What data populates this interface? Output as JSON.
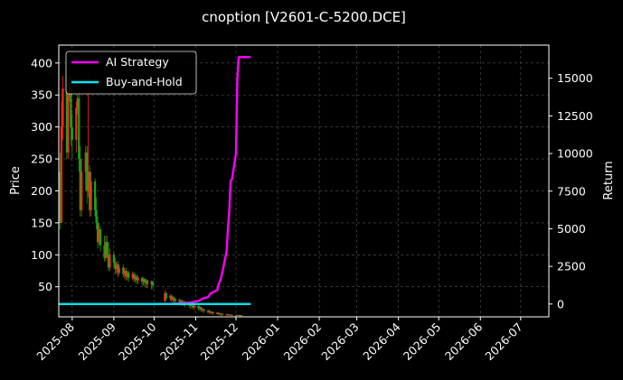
{
  "chart_data": {
    "type": "line",
    "title": "cnoption [V2601-C-5200.DCE]",
    "ylabel_left": "Price",
    "ylabel_right": "Return",
    "xlabel": "",
    "x_ticks": [
      "2025-08",
      "2025-09",
      "2025-10",
      "2025-11",
      "2025-12",
      "2026-01",
      "2026-02",
      "2026-03",
      "2026-04",
      "2026-05",
      "2026-06",
      "2026-07"
    ],
    "x_range": [
      "2025-07-22",
      "2026-07-22"
    ],
    "ylim_left": [
      3,
      428
    ],
    "ylim_right": [
      -850,
      17200
    ],
    "y_ticks_left": [
      50,
      100,
      150,
      200,
      250,
      300,
      350,
      400
    ],
    "y_ticks_right": [
      0,
      2500,
      5000,
      7500,
      10000,
      12500,
      15000
    ],
    "grid": true,
    "legend_position": "top-left",
    "legend": [
      {
        "label": "AI Strategy",
        "color": "#ff00ff"
      },
      {
        "label": "Buy-and-Hold",
        "color": "#00e5ee"
      }
    ],
    "candles": [
      [
        "2025-07-23",
        230,
        150,
        260,
        140
      ],
      [
        "2025-07-24",
        150,
        300,
        340,
        150
      ],
      [
        "2025-07-25",
        300,
        360,
        380,
        280
      ],
      [
        "2025-07-28",
        360,
        260,
        390,
        250
      ],
      [
        "2025-07-29",
        260,
        350,
        380,
        250
      ],
      [
        "2025-07-30",
        350,
        370,
        395,
        340
      ],
      [
        "2025-07-31",
        370,
        300,
        380,
        270
      ],
      [
        "2025-08-01",
        300,
        280,
        320,
        250
      ],
      [
        "2025-08-04",
        280,
        330,
        340,
        260
      ],
      [
        "2025-08-05",
        330,
        345,
        350,
        320
      ],
      [
        "2025-08-06",
        345,
        250,
        360,
        230
      ],
      [
        "2025-08-07",
        250,
        170,
        270,
        160
      ],
      [
        "2025-08-08",
        170,
        230,
        250,
        160
      ],
      [
        "2025-08-11",
        230,
        260,
        270,
        200
      ],
      [
        "2025-08-12",
        260,
        200,
        270,
        180
      ],
      [
        "2025-08-13",
        200,
        230,
        380,
        190
      ],
      [
        "2025-08-14",
        230,
        170,
        240,
        160
      ],
      [
        "2025-08-15",
        170,
        215,
        230,
        160
      ],
      [
        "2025-08-18",
        215,
        170,
        220,
        160
      ],
      [
        "2025-08-19",
        170,
        150,
        190,
        140
      ],
      [
        "2025-08-20",
        150,
        120,
        160,
        110
      ],
      [
        "2025-08-21",
        120,
        140,
        150,
        115
      ],
      [
        "2025-08-22",
        140,
        115,
        145,
        105
      ],
      [
        "2025-08-25",
        115,
        95,
        130,
        90
      ],
      [
        "2025-08-26",
        95,
        120,
        130,
        90
      ],
      [
        "2025-08-27",
        120,
        100,
        130,
        95
      ],
      [
        "2025-08-28",
        100,
        80,
        120,
        75
      ],
      [
        "2025-08-29",
        80,
        100,
        110,
        75
      ],
      [
        "2025-09-01",
        100,
        88,
        105,
        80
      ],
      [
        "2025-09-02",
        88,
        78,
        95,
        70
      ],
      [
        "2025-09-03",
        78,
        85,
        90,
        70
      ],
      [
        "2025-09-04",
        85,
        72,
        90,
        65
      ],
      [
        "2025-09-05",
        72,
        80,
        85,
        68
      ],
      [
        "2025-09-08",
        80,
        70,
        85,
        65
      ],
      [
        "2025-09-09",
        70,
        75,
        80,
        62
      ],
      [
        "2025-09-10",
        75,
        66,
        80,
        60
      ],
      [
        "2025-09-11",
        66,
        72,
        75,
        60
      ],
      [
        "2025-09-12",
        72,
        64,
        75,
        58
      ],
      [
        "2025-09-15",
        64,
        70,
        74,
        60
      ],
      [
        "2025-09-16",
        70,
        62,
        73,
        58
      ],
      [
        "2025-09-17",
        62,
        66,
        70,
        56
      ],
      [
        "2025-09-18",
        66,
        60,
        70,
        55
      ],
      [
        "2025-09-19",
        60,
        64,
        68,
        54
      ],
      [
        "2025-09-22",
        64,
        58,
        66,
        52
      ],
      [
        "2025-09-23",
        58,
        62,
        65,
        52
      ],
      [
        "2025-09-24",
        62,
        56,
        64,
        50
      ],
      [
        "2025-09-25",
        56,
        60,
        62,
        48
      ],
      [
        "2025-09-26",
        60,
        54,
        62,
        48
      ],
      [
        "2025-09-29",
        54,
        58,
        60,
        46
      ],
      [
        "2025-09-30",
        58,
        52,
        60,
        46
      ],
      [
        "2025-10-09",
        28,
        40,
        45,
        25
      ],
      [
        "2025-10-10",
        40,
        32,
        42,
        28
      ],
      [
        "2025-10-13",
        32,
        36,
        38,
        28
      ],
      [
        "2025-10-14",
        36,
        30,
        38,
        26
      ],
      [
        "2025-10-15",
        30,
        33,
        35,
        26
      ],
      [
        "2025-10-16",
        33,
        28,
        35,
        24
      ],
      [
        "2025-10-17",
        28,
        30,
        32,
        24
      ],
      [
        "2025-10-20",
        30,
        25,
        32,
        22
      ],
      [
        "2025-10-21",
        25,
        28,
        30,
        22
      ],
      [
        "2025-10-22",
        28,
        24,
        30,
        20
      ],
      [
        "2025-10-23",
        24,
        26,
        28,
        20
      ],
      [
        "2025-10-24",
        26,
        22,
        28,
        18
      ],
      [
        "2025-10-27",
        22,
        24,
        26,
        18
      ],
      [
        "2025-10-28",
        24,
        20,
        26,
        16
      ],
      [
        "2025-10-29",
        20,
        22,
        24,
        16
      ],
      [
        "2025-10-30",
        22,
        18,
        24,
        15
      ],
      [
        "2025-10-31",
        18,
        20,
        22,
        14
      ],
      [
        "2025-11-03",
        20,
        16,
        22,
        13
      ],
      [
        "2025-11-04",
        16,
        18,
        20,
        12
      ],
      [
        "2025-11-05",
        18,
        14,
        19,
        11
      ],
      [
        "2025-11-06",
        14,
        15,
        17,
        10
      ],
      [
        "2025-11-07",
        15,
        12,
        16,
        9
      ],
      [
        "2025-11-10",
        12,
        13,
        14,
        8
      ],
      [
        "2025-11-11",
        13,
        10,
        14,
        8
      ],
      [
        "2025-11-12",
        10,
        11,
        12,
        7
      ],
      [
        "2025-11-13",
        11,
        9,
        12,
        7
      ],
      [
        "2025-11-14",
        9,
        10,
        11,
        6
      ],
      [
        "2025-11-17",
        10,
        8,
        10,
        6
      ],
      [
        "2025-11-18",
        8,
        9,
        10,
        6
      ],
      [
        "2025-11-19",
        9,
        7,
        9,
        5
      ],
      [
        "2025-11-20",
        7,
        8,
        9,
        5
      ],
      [
        "2025-11-21",
        8,
        6,
        8,
        5
      ],
      [
        "2025-11-24",
        6,
        7,
        8,
        5
      ],
      [
        "2025-11-25",
        7,
        6,
        7,
        5
      ],
      [
        "2025-11-26",
        6,
        6.5,
        7,
        5
      ],
      [
        "2025-11-27",
        6.5,
        5.5,
        7,
        5
      ],
      [
        "2025-11-28",
        5.5,
        6,
        6.5,
        5
      ],
      [
        "2025-12-01",
        6,
        5.5,
        6,
        5
      ],
      [
        "2025-12-02",
        5.5,
        5.8,
        6,
        5
      ],
      [
        "2025-12-03",
        5.8,
        5.2,
        6,
        5
      ],
      [
        "2025-12-04",
        5.2,
        5.5,
        5.8,
        5
      ],
      [
        "2025-12-05",
        5.5,
        5,
        5.6,
        4.5
      ]
    ],
    "series": [
      {
        "name": "AI Strategy",
        "color": "#ff00ff",
        "axis": "right",
        "x": [
          "2025-10-01",
          "2025-10-10",
          "2025-10-17",
          "2025-10-23",
          "2025-10-28",
          "2025-11-03",
          "2025-11-07",
          "2025-11-10",
          "2025-11-12",
          "2025-11-14",
          "2025-11-17",
          "2025-11-18",
          "2025-11-19",
          "2025-11-20",
          "2025-11-21",
          "2025-11-24",
          "2025-11-25",
          "2025-11-26",
          "2025-11-27",
          "2025-11-28",
          "2025-12-01",
          "2025-12-02",
          "2025-12-03",
          "2025-12-04",
          "2025-12-05",
          "2025-12-08",
          "2025-12-12"
        ],
        "values": [
          0,
          0,
          20,
          50,
          100,
          200,
          400,
          450,
          700,
          800,
          900,
          1300,
          1500,
          1800,
          2200,
          3500,
          5000,
          6200,
          8200,
          8300,
          10000,
          15000,
          16400,
          16400,
          16400,
          16400,
          16400
        ]
      },
      {
        "name": "Buy-and-Hold",
        "color": "#00e5ee",
        "axis": "right",
        "x": [
          "2025-07-22",
          "2025-12-12"
        ],
        "values": [
          0,
          0
        ]
      }
    ]
  }
}
